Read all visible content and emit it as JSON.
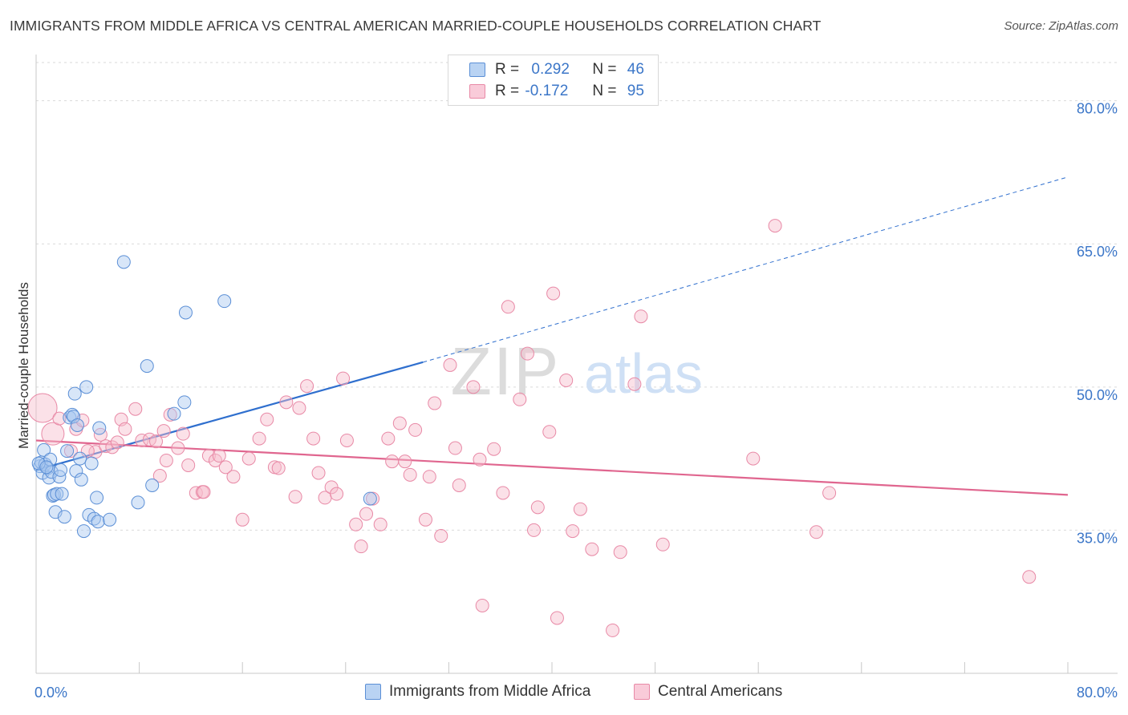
{
  "title": "IMMIGRANTS FROM MIDDLE AFRICA VS CENTRAL AMERICAN MARRIED-COUPLE HOUSEHOLDS CORRELATION CHART",
  "source": "Source: ZipAtlas.com",
  "watermark": {
    "zip": "ZIP",
    "atlas": "atlas"
  },
  "colors": {
    "blue_fill": "#a8c8f0",
    "blue_stroke": "#5b8fd6",
    "blue_line": "#2f6fce",
    "pink_fill": "#f6bccd",
    "pink_stroke": "#e889a6",
    "pink_line": "#e0668f",
    "tick_text": "#3b76c8",
    "grid": "#d9d9d9"
  },
  "legend": {
    "rows": [
      {
        "r_label": "R =",
        "r_value": "0.292",
        "n_label": "N =",
        "n_value": "46",
        "series": "blue"
      },
      {
        "r_label": "R =",
        "r_value": "-0.172",
        "n_label": "N =",
        "n_value": "95",
        "series": "pink"
      }
    ]
  },
  "chart_data": {
    "type": "scatter",
    "title": "IMMIGRANTS FROM MIDDLE AFRICA VS CENTRAL AMERICAN MARRIED-COUPLE HOUSEHOLDS CORRELATION CHART",
    "xlabel": "",
    "ylabel": "Married-couple Households",
    "xlim": [
      0,
      80
    ],
    "ylim": [
      20,
      84
    ],
    "x_tick_labels": [
      "0.0%",
      "80.0%"
    ],
    "y_ticks": [
      35,
      50,
      65,
      80
    ],
    "y_tick_labels": [
      "35.0%",
      "50.0%",
      "65.0%",
      "80.0%"
    ],
    "grid": true,
    "legend_position": "top-center",
    "series": [
      {
        "name": "Immigrants from Middle Africa",
        "color": "blue",
        "r": 0.292,
        "n": 46,
        "trend": {
          "x0": 0,
          "y0": 41.3,
          "x1": 30.0,
          "y1": 52.6,
          "dash_to_x": 80,
          "dash_to_y": 72.0
        },
        "points": [
          [
            0.3,
            41.7
          ],
          [
            0.4,
            42.1
          ],
          [
            0.5,
            41.0
          ],
          [
            0.6,
            43.4
          ],
          [
            0.7,
            41.9
          ],
          [
            0.9,
            41.5
          ],
          [
            1.0,
            40.5
          ],
          [
            1.1,
            42.4
          ],
          [
            1.2,
            41.1
          ],
          [
            1.3,
            38.6
          ],
          [
            1.4,
            38.7
          ],
          [
            1.5,
            36.9
          ],
          [
            1.6,
            38.8
          ],
          [
            1.8,
            40.6
          ],
          [
            2.0,
            38.8
          ],
          [
            2.2,
            36.4
          ],
          [
            2.4,
            43.3
          ],
          [
            2.6,
            46.8
          ],
          [
            2.8,
            47.1
          ],
          [
            2.9,
            46.9
          ],
          [
            3.0,
            49.3
          ],
          [
            3.1,
            41.2
          ],
          [
            3.2,
            46.0
          ],
          [
            3.4,
            42.5
          ],
          [
            3.5,
            40.3
          ],
          [
            3.7,
            34.9
          ],
          [
            3.9,
            50.0
          ],
          [
            4.1,
            36.6
          ],
          [
            4.3,
            42.0
          ],
          [
            4.5,
            36.2
          ],
          [
            4.7,
            38.4
          ],
          [
            4.8,
            35.9
          ],
          [
            4.9,
            45.7
          ],
          [
            5.7,
            36.1
          ],
          [
            6.8,
            63.1
          ],
          [
            7.9,
            37.9
          ],
          [
            8.6,
            52.2
          ],
          [
            9.0,
            39.7
          ],
          [
            10.7,
            47.2
          ],
          [
            11.5,
            48.4
          ],
          [
            11.6,
            57.8
          ],
          [
            14.6,
            59.0
          ],
          [
            25.9,
            38.3
          ],
          [
            0.2,
            42.0
          ],
          [
            0.8,
            41.6
          ],
          [
            1.9,
            41.3
          ]
        ]
      },
      {
        "name": "Central Americans",
        "color": "pink",
        "r": -0.172,
        "n": 95,
        "trend": {
          "x0": 0,
          "y0": 44.4,
          "x1": 80,
          "y1": 38.7
        },
        "points": [
          [
            0.5,
            47.8
          ],
          [
            1.3,
            45.1
          ],
          [
            1.8,
            46.7
          ],
          [
            2.7,
            43.3
          ],
          [
            3.1,
            45.6
          ],
          [
            3.6,
            46.5
          ],
          [
            4.6,
            43.2
          ],
          [
            5.0,
            45.0
          ],
          [
            5.4,
            43.8
          ],
          [
            5.9,
            43.7
          ],
          [
            6.3,
            44.2
          ],
          [
            6.6,
            46.6
          ],
          [
            6.9,
            45.6
          ],
          [
            7.7,
            47.7
          ],
          [
            8.2,
            44.4
          ],
          [
            8.8,
            44.5
          ],
          [
            9.6,
            40.7
          ],
          [
            9.9,
            45.4
          ],
          [
            10.1,
            42.3
          ],
          [
            10.4,
            47.1
          ],
          [
            11.0,
            43.6
          ],
          [
            11.4,
            45.1
          ],
          [
            11.8,
            41.8
          ],
          [
            12.4,
            38.9
          ],
          [
            12.9,
            39.0
          ],
          [
            13.4,
            42.8
          ],
          [
            13.9,
            42.3
          ],
          [
            14.2,
            42.8
          ],
          [
            14.7,
            41.6
          ],
          [
            15.3,
            40.6
          ],
          [
            16.0,
            36.1
          ],
          [
            16.5,
            42.5
          ],
          [
            17.3,
            44.6
          ],
          [
            17.9,
            46.6
          ],
          [
            18.5,
            41.6
          ],
          [
            18.8,
            41.5
          ],
          [
            19.4,
            48.4
          ],
          [
            20.1,
            38.5
          ],
          [
            20.4,
            47.8
          ],
          [
            21.0,
            50.1
          ],
          [
            21.5,
            44.6
          ],
          [
            21.9,
            41.0
          ],
          [
            22.4,
            38.4
          ],
          [
            22.9,
            39.5
          ],
          [
            23.3,
            38.8
          ],
          [
            23.8,
            50.9
          ],
          [
            24.1,
            44.4
          ],
          [
            24.8,
            35.6
          ],
          [
            25.2,
            33.3
          ],
          [
            25.6,
            36.7
          ],
          [
            26.1,
            38.3
          ],
          [
            26.7,
            35.6
          ],
          [
            27.3,
            44.6
          ],
          [
            27.6,
            42.2
          ],
          [
            28.2,
            46.2
          ],
          [
            28.6,
            42.2
          ],
          [
            29.0,
            40.8
          ],
          [
            29.4,
            45.5
          ],
          [
            30.2,
            36.1
          ],
          [
            30.5,
            40.6
          ],
          [
            30.9,
            48.3
          ],
          [
            31.4,
            34.4
          ],
          [
            32.1,
            52.3
          ],
          [
            32.5,
            43.6
          ],
          [
            32.8,
            39.7
          ],
          [
            33.9,
            50.0
          ],
          [
            34.4,
            42.4
          ],
          [
            34.6,
            27.1
          ],
          [
            35.5,
            43.5
          ],
          [
            36.2,
            38.9
          ],
          [
            36.6,
            58.4
          ],
          [
            37.5,
            48.7
          ],
          [
            38.1,
            53.5
          ],
          [
            38.6,
            35.0
          ],
          [
            38.9,
            37.4
          ],
          [
            39.8,
            45.3
          ],
          [
            40.1,
            59.8
          ],
          [
            40.4,
            25.8
          ],
          [
            41.1,
            50.7
          ],
          [
            41.6,
            34.9
          ],
          [
            42.2,
            37.2
          ],
          [
            43.1,
            33.0
          ],
          [
            44.7,
            24.5
          ],
          [
            45.3,
            32.7
          ],
          [
            46.4,
            50.3
          ],
          [
            46.9,
            57.4
          ],
          [
            48.6,
            33.5
          ],
          [
            55.6,
            42.5
          ],
          [
            57.3,
            66.9
          ],
          [
            60.5,
            34.8
          ],
          [
            61.5,
            38.9
          ],
          [
            77.0,
            30.1
          ],
          [
            4.0,
            43.3
          ],
          [
            9.3,
            44.3
          ],
          [
            13.0,
            39.0
          ]
        ]
      }
    ]
  },
  "bottom_legend": [
    {
      "label": "Immigrants from Middle Africa",
      "series": "blue"
    },
    {
      "label": "Central Americans",
      "series": "pink"
    }
  ]
}
